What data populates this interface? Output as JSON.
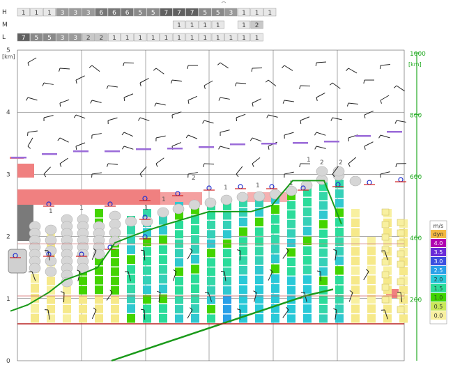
{
  "chart_data": {
    "type": "heatmap",
    "cloud_rows": [
      {
        "label": "H",
        "values": [
          "1",
          "1",
          "1",
          "3",
          "3",
          "3",
          "6",
          "6",
          "6",
          "5",
          "5",
          "7",
          "7",
          "7",
          "5",
          "5",
          "3",
          "1",
          "1",
          "1"
        ]
      },
      {
        "label": "M",
        "values": [
          "",
          "",
          "",
          "",
          "",
          "",
          "",
          "",
          "",
          "",
          "",
          "",
          "1",
          "1",
          "1",
          "1",
          "",
          "1",
          "2",
          ""
        ]
      },
      {
        "label": "L",
        "values": [
          "7",
          "5",
          "5",
          "3",
          "3",
          "2",
          "2",
          "1",
          "1",
          "1",
          "1",
          "1",
          "1",
          "1",
          "1",
          "1",
          "1",
          "1",
          "1",
          ""
        ]
      }
    ],
    "left_axis": {
      "unit": "[km]",
      "ticks": [
        "0",
        "1",
        "2",
        "3",
        "4",
        "5"
      ],
      "ylim": [
        0,
        5
      ]
    },
    "right_axis": {
      "unit": "[km]",
      "ticks": [
        "200",
        "400",
        "600",
        "800",
        "1000"
      ],
      "ylim": [
        0,
        1000
      ]
    },
    "legend": {
      "title": "m/s",
      "items": [
        {
          "label": "dyn",
          "color": "#f4b942"
        },
        {
          "label": "4.0",
          "color": "#b000b0"
        },
        {
          "label": "3.5",
          "color": "#6a2bd8"
        },
        {
          "label": "3.0",
          "color": "#3c4fe0"
        },
        {
          "label": "2.5",
          "color": "#2aa0e8"
        },
        {
          "label": "2.0",
          "color": "#29c9d8"
        },
        {
          "label": "1.5",
          "color": "#2bdc9a"
        },
        {
          "label": "1.0",
          "color": "#3fd400"
        },
        {
          "label": "0.5",
          "color": "#c9e85a"
        },
        {
          "label": "0.0",
          "color": "#f8f0a0"
        }
      ]
    },
    "column_labels": [
      "1",
      "1",
      "1",
      "1",
      "2",
      "1",
      "1",
      "1",
      "1",
      "2",
      "2"
    ],
    "boundary_layer_km": [
      0.8,
      0.9,
      1.1,
      1.3,
      1.4,
      1.5,
      1.9,
      2.0,
      2.1,
      2.2,
      2.3,
      2.4,
      2.4,
      2.4,
      2.5,
      2.9,
      2.9,
      2.9,
      2.2
    ],
    "ground_line_km": [
      0.0,
      0.15,
      0.3,
      0.45,
      0.6,
      0.75,
      0.9,
      1.05,
      1.15
    ]
  },
  "colors": {
    "grid": "#555555",
    "right_axis": "#22aa22",
    "boundary_line": "#1a9a1a",
    "red_line": "#b82020",
    "pink_band": "#f08080"
  }
}
